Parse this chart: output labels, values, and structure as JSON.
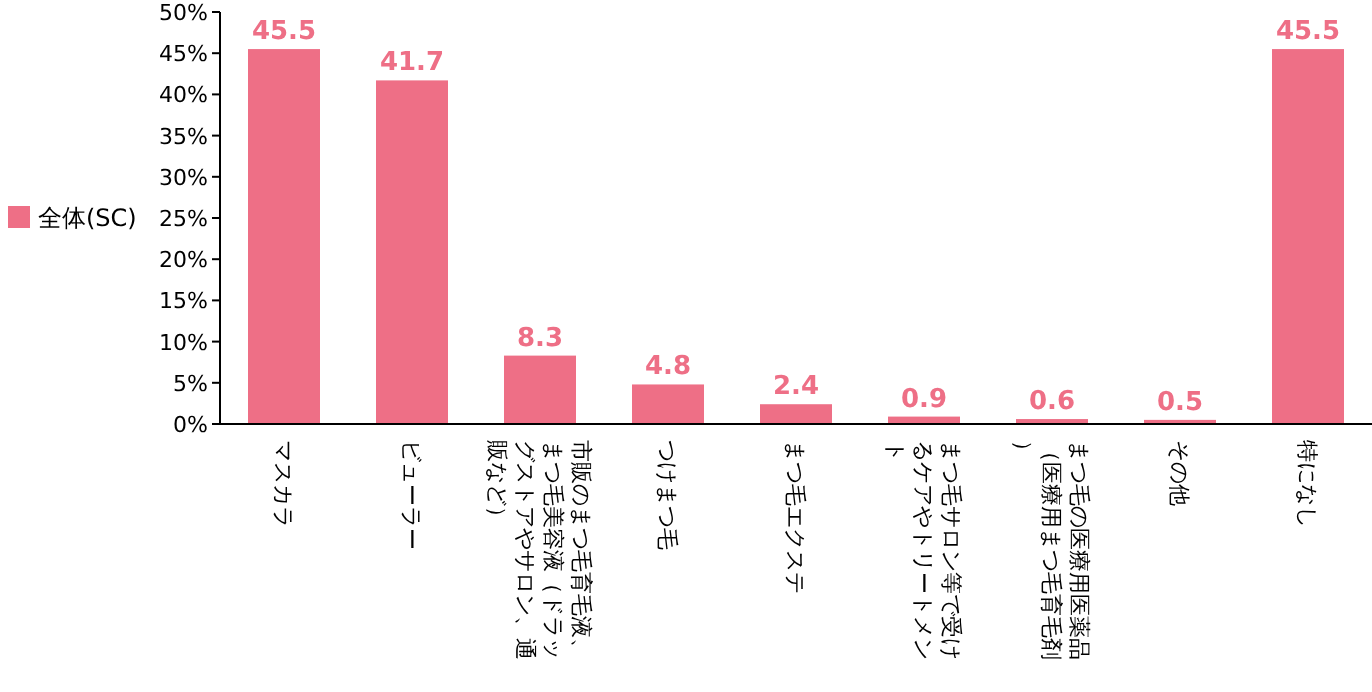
{
  "chart_data": {
    "type": "bar",
    "categories": [
      "マスカラ",
      "ビューラー",
      "市販のまつ毛育毛液、まつ毛美容液（ドラッグストアやサロン、通販など）",
      "つけまつ毛",
      "まつ毛エクステ",
      "まつ毛サロン等で受けるケアやトリートメント",
      "まつ毛の医療用医薬品（医療用まつ毛育毛剤）",
      "その他",
      "特になし"
    ],
    "series": [
      {
        "name": "全体(SC)",
        "color": "#ee6f86",
        "values": [
          45.5,
          41.7,
          8.3,
          4.8,
          2.4,
          0.9,
          0.6,
          0.5,
          45.5
        ]
      }
    ],
    "ylim": [
      0,
      50
    ],
    "yticks": [
      {
        "value": 0,
        "label": "0%"
      },
      {
        "value": 5,
        "label": "5%"
      },
      {
        "value": 10,
        "label": "10%"
      },
      {
        "value": 15,
        "label": "15%"
      },
      {
        "value": 20,
        "label": "20%"
      },
      {
        "value": 25,
        "label": "25%"
      },
      {
        "value": 30,
        "label": "30%"
      },
      {
        "value": 35,
        "label": "35%"
      },
      {
        "value": 40,
        "label": "40%"
      },
      {
        "value": 45,
        "label": "45%"
      },
      {
        "value": 50,
        "label": "50%"
      }
    ],
    "data_labels": true,
    "legend": "left",
    "grid": false
  }
}
